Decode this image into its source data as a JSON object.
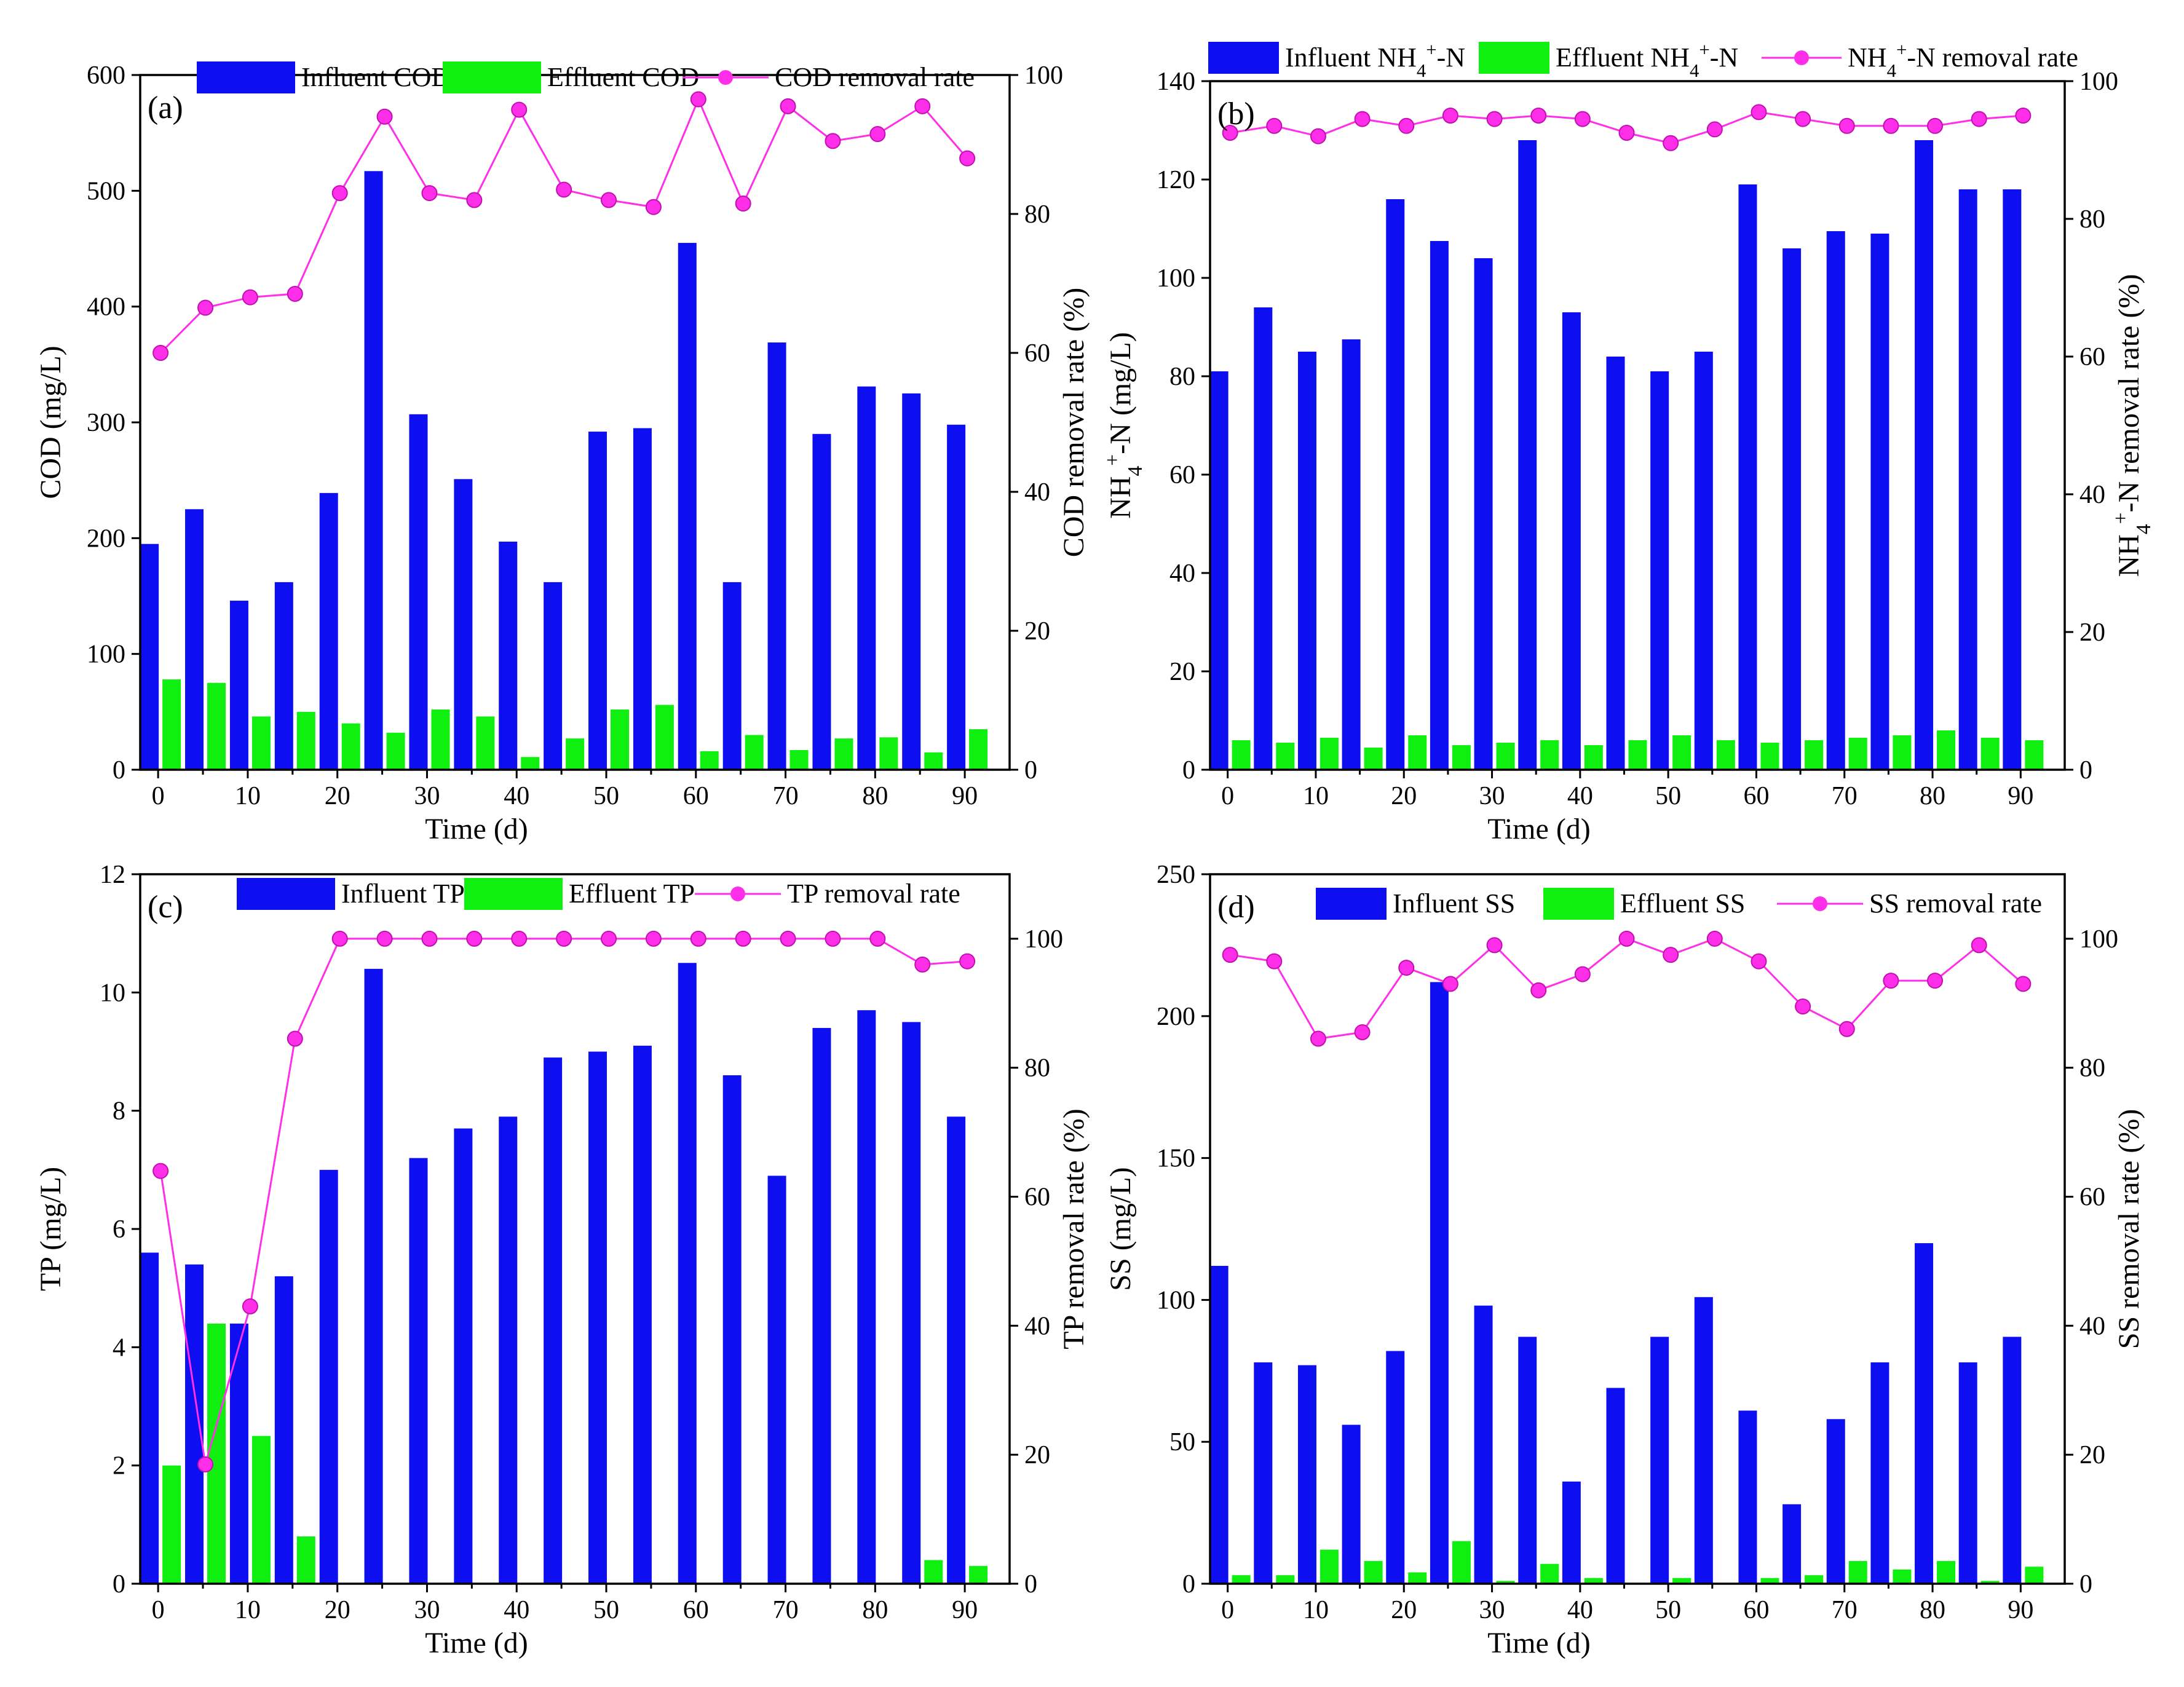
{
  "colors": {
    "influent": "#0d0ff0",
    "effluent": "#10f010",
    "removal": "#ff2ee8"
  },
  "chart_data": [
    {
      "type": "bar",
      "panel_label": "(a)",
      "x": [
        0,
        5,
        10,
        15,
        20,
        25,
        30,
        35,
        40,
        45,
        50,
        55,
        60,
        65,
        70,
        75,
        80,
        85,
        90
      ],
      "xlabel": "Time (d)",
      "xticks": [
        0,
        10,
        20,
        30,
        40,
        50,
        60,
        70,
        80,
        90
      ],
      "xlim": [
        -2,
        95
      ],
      "ylabel": "COD (mg/L)",
      "ylim": [
        0,
        600
      ],
      "yticks": [
        0,
        100,
        200,
        300,
        400,
        500,
        600
      ],
      "y2label": "COD removal rate (%)",
      "y2lim": [
        0,
        100
      ],
      "y2ticks": [
        0,
        20,
        40,
        60,
        80,
        100
      ],
      "series": [
        {
          "name": "Influent COD",
          "kind": "bar",
          "axis": "left",
          "values": [
            195,
            225,
            146,
            162,
            239,
            517,
            307,
            251,
            197,
            162,
            292,
            295,
            455,
            162,
            369,
            290,
            331,
            325,
            298
          ]
        },
        {
          "name": "Effluent COD",
          "kind": "bar",
          "axis": "left",
          "values": [
            78,
            75,
            46,
            50,
            40,
            32,
            52,
            46,
            11,
            27,
            52,
            56,
            16,
            30,
            17,
            27,
            28,
            15,
            35
          ]
        },
        {
          "name": "COD removal rate",
          "kind": "line",
          "axis": "right",
          "values": [
            60,
            66.5,
            68,
            68.5,
            83,
            94,
            83,
            82,
            95,
            83.5,
            82,
            81,
            96.5,
            81.5,
            95.5,
            90.5,
            91.5,
            95.5,
            88
          ]
        }
      ]
    },
    {
      "type": "bar",
      "panel_label": "(b)",
      "x": [
        0,
        5,
        10,
        15,
        20,
        25,
        30,
        35,
        40,
        45,
        50,
        55,
        60,
        65,
        70,
        75,
        80,
        85,
        90
      ],
      "xlabel": "Time (d)",
      "xticks": [
        0,
        10,
        20,
        30,
        40,
        50,
        60,
        70,
        80,
        90
      ],
      "xlim": [
        -2,
        95
      ],
      "ylabel": "NH4+-N (mg/L)",
      "ylim": [
        0,
        140
      ],
      "yticks": [
        0,
        20,
        40,
        60,
        80,
        100,
        120,
        140
      ],
      "y2label": "NH4+-N removal rate (%)",
      "y2lim": [
        0,
        100
      ],
      "y2ticks": [
        0,
        20,
        40,
        60,
        80,
        100
      ],
      "series": [
        {
          "name": "Influent NH4+-N",
          "kind": "bar",
          "axis": "left",
          "values": [
            81,
            94,
            85,
            87.5,
            116,
            107.5,
            104,
            128,
            93,
            84,
            81,
            85,
            119,
            106,
            109.5,
            109,
            128,
            118,
            118
          ]
        },
        {
          "name": "Effluent NH4+-N",
          "kind": "bar",
          "axis": "left",
          "values": [
            6,
            5.5,
            6.5,
            4.5,
            7,
            5,
            5.5,
            6,
            5,
            6,
            7,
            6,
            5.5,
            6,
            6.5,
            7,
            8,
            6.5,
            6
          ]
        },
        {
          "name": "NH4+-N removal rate",
          "kind": "line",
          "axis": "right",
          "values": [
            92.5,
            93.5,
            92,
            94.5,
            93.5,
            95,
            94.5,
            95,
            94.5,
            92.5,
            91,
            93,
            95.5,
            94.5,
            93.5,
            93.5,
            93.5,
            94.5,
            95
          ]
        }
      ]
    },
    {
      "type": "bar",
      "panel_label": "(c)",
      "x": [
        0,
        5,
        10,
        15,
        20,
        25,
        30,
        35,
        40,
        45,
        50,
        55,
        60,
        65,
        70,
        75,
        80,
        85,
        90
      ],
      "xlabel": "Time (d)",
      "xticks": [
        0,
        10,
        20,
        30,
        40,
        50,
        60,
        70,
        80,
        90
      ],
      "xlim": [
        -2,
        95
      ],
      "ylabel": "TP (mg/L)",
      "ylim": [
        0,
        12
      ],
      "yticks": [
        0,
        2,
        4,
        6,
        8,
        10,
        12
      ],
      "y2label": "TP removal rate (%)",
      "y2lim": [
        0,
        110
      ],
      "y2ticks": [
        0,
        20,
        40,
        60,
        80,
        100
      ],
      "series": [
        {
          "name": "Influent TP",
          "kind": "bar",
          "axis": "left",
          "values": [
            5.6,
            5.4,
            4.4,
            5.2,
            7.0,
            10.4,
            7.2,
            7.7,
            7.9,
            8.9,
            9.0,
            9.1,
            10.5,
            8.6,
            6.9,
            9.4,
            9.7,
            9.5,
            7.9
          ]
        },
        {
          "name": "Effluent TP",
          "kind": "bar",
          "axis": "left",
          "values": [
            2.0,
            4.4,
            2.5,
            0.8,
            0,
            0,
            0,
            0,
            0,
            0,
            0,
            0,
            0,
            0,
            0,
            0,
            0,
            0.4,
            0.3
          ]
        },
        {
          "name": "TP removal rate",
          "kind": "line",
          "axis": "right",
          "values": [
            64,
            18.5,
            43,
            84.5,
            100,
            100,
            100,
            100,
            100,
            100,
            100,
            100,
            100,
            100,
            100,
            100,
            100,
            96,
            96.5
          ]
        }
      ]
    },
    {
      "type": "bar",
      "panel_label": "(d)",
      "x": [
        0,
        5,
        10,
        15,
        20,
        25,
        30,
        35,
        40,
        45,
        50,
        55,
        60,
        65,
        70,
        75,
        80,
        85,
        90
      ],
      "xlabel": "Time (d)",
      "xticks": [
        0,
        10,
        20,
        30,
        40,
        50,
        60,
        70,
        80,
        90
      ],
      "xlim": [
        -2,
        95
      ],
      "ylabel": "SS (mg/L)",
      "ylim": [
        0,
        250
      ],
      "yticks": [
        0,
        50,
        100,
        150,
        200,
        250
      ],
      "y2label": "SS removal rate (%)",
      "y2lim": [
        0,
        110
      ],
      "y2ticks": [
        0,
        20,
        40,
        60,
        80,
        100
      ],
      "series": [
        {
          "name": "Influent SS",
          "kind": "bar",
          "axis": "left",
          "values": [
            112,
            78,
            77,
            56,
            82,
            212,
            98,
            87,
            36,
            69,
            87,
            101,
            61,
            28,
            58,
            78,
            120,
            78,
            87
          ]
        },
        {
          "name": "Effluent SS",
          "kind": "bar",
          "axis": "left",
          "values": [
            3,
            3,
            12,
            8,
            4,
            15,
            1,
            7,
            2,
            0,
            2,
            0,
            2,
            3,
            8,
            5,
            8,
            1,
            6
          ]
        },
        {
          "name": "SS removal rate",
          "kind": "line",
          "axis": "right",
          "values": [
            97.5,
            96.5,
            84.5,
            85.5,
            95.5,
            93,
            99,
            92,
            94.5,
            100,
            97.5,
            100,
            96.5,
            89.5,
            86,
            93.5,
            93.5,
            99,
            93
          ]
        }
      ]
    }
  ]
}
